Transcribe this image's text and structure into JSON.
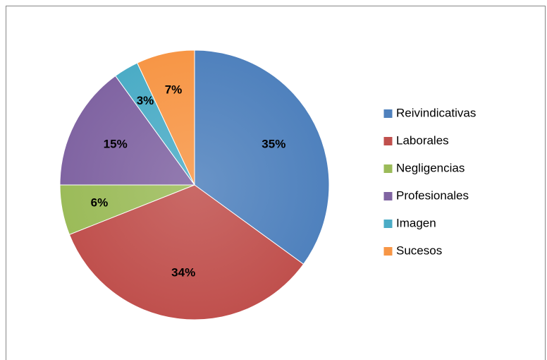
{
  "chart_data": {
    "type": "pie",
    "categories": [
      "Reivindicativas",
      "Laborales",
      "Negligencias",
      "Profesionales",
      "Imagen",
      "Sucesos"
    ],
    "values": [
      35,
      34,
      6,
      15,
      3,
      7
    ],
    "value_labels": [
      "35%",
      "34%",
      "6%",
      "15%",
      "3%",
      "7%"
    ],
    "colors": [
      "#4f81bd",
      "#c0504d",
      "#9bbb59",
      "#8064a2",
      "#4bacc6",
      "#f79646"
    ],
    "legend": "right"
  }
}
